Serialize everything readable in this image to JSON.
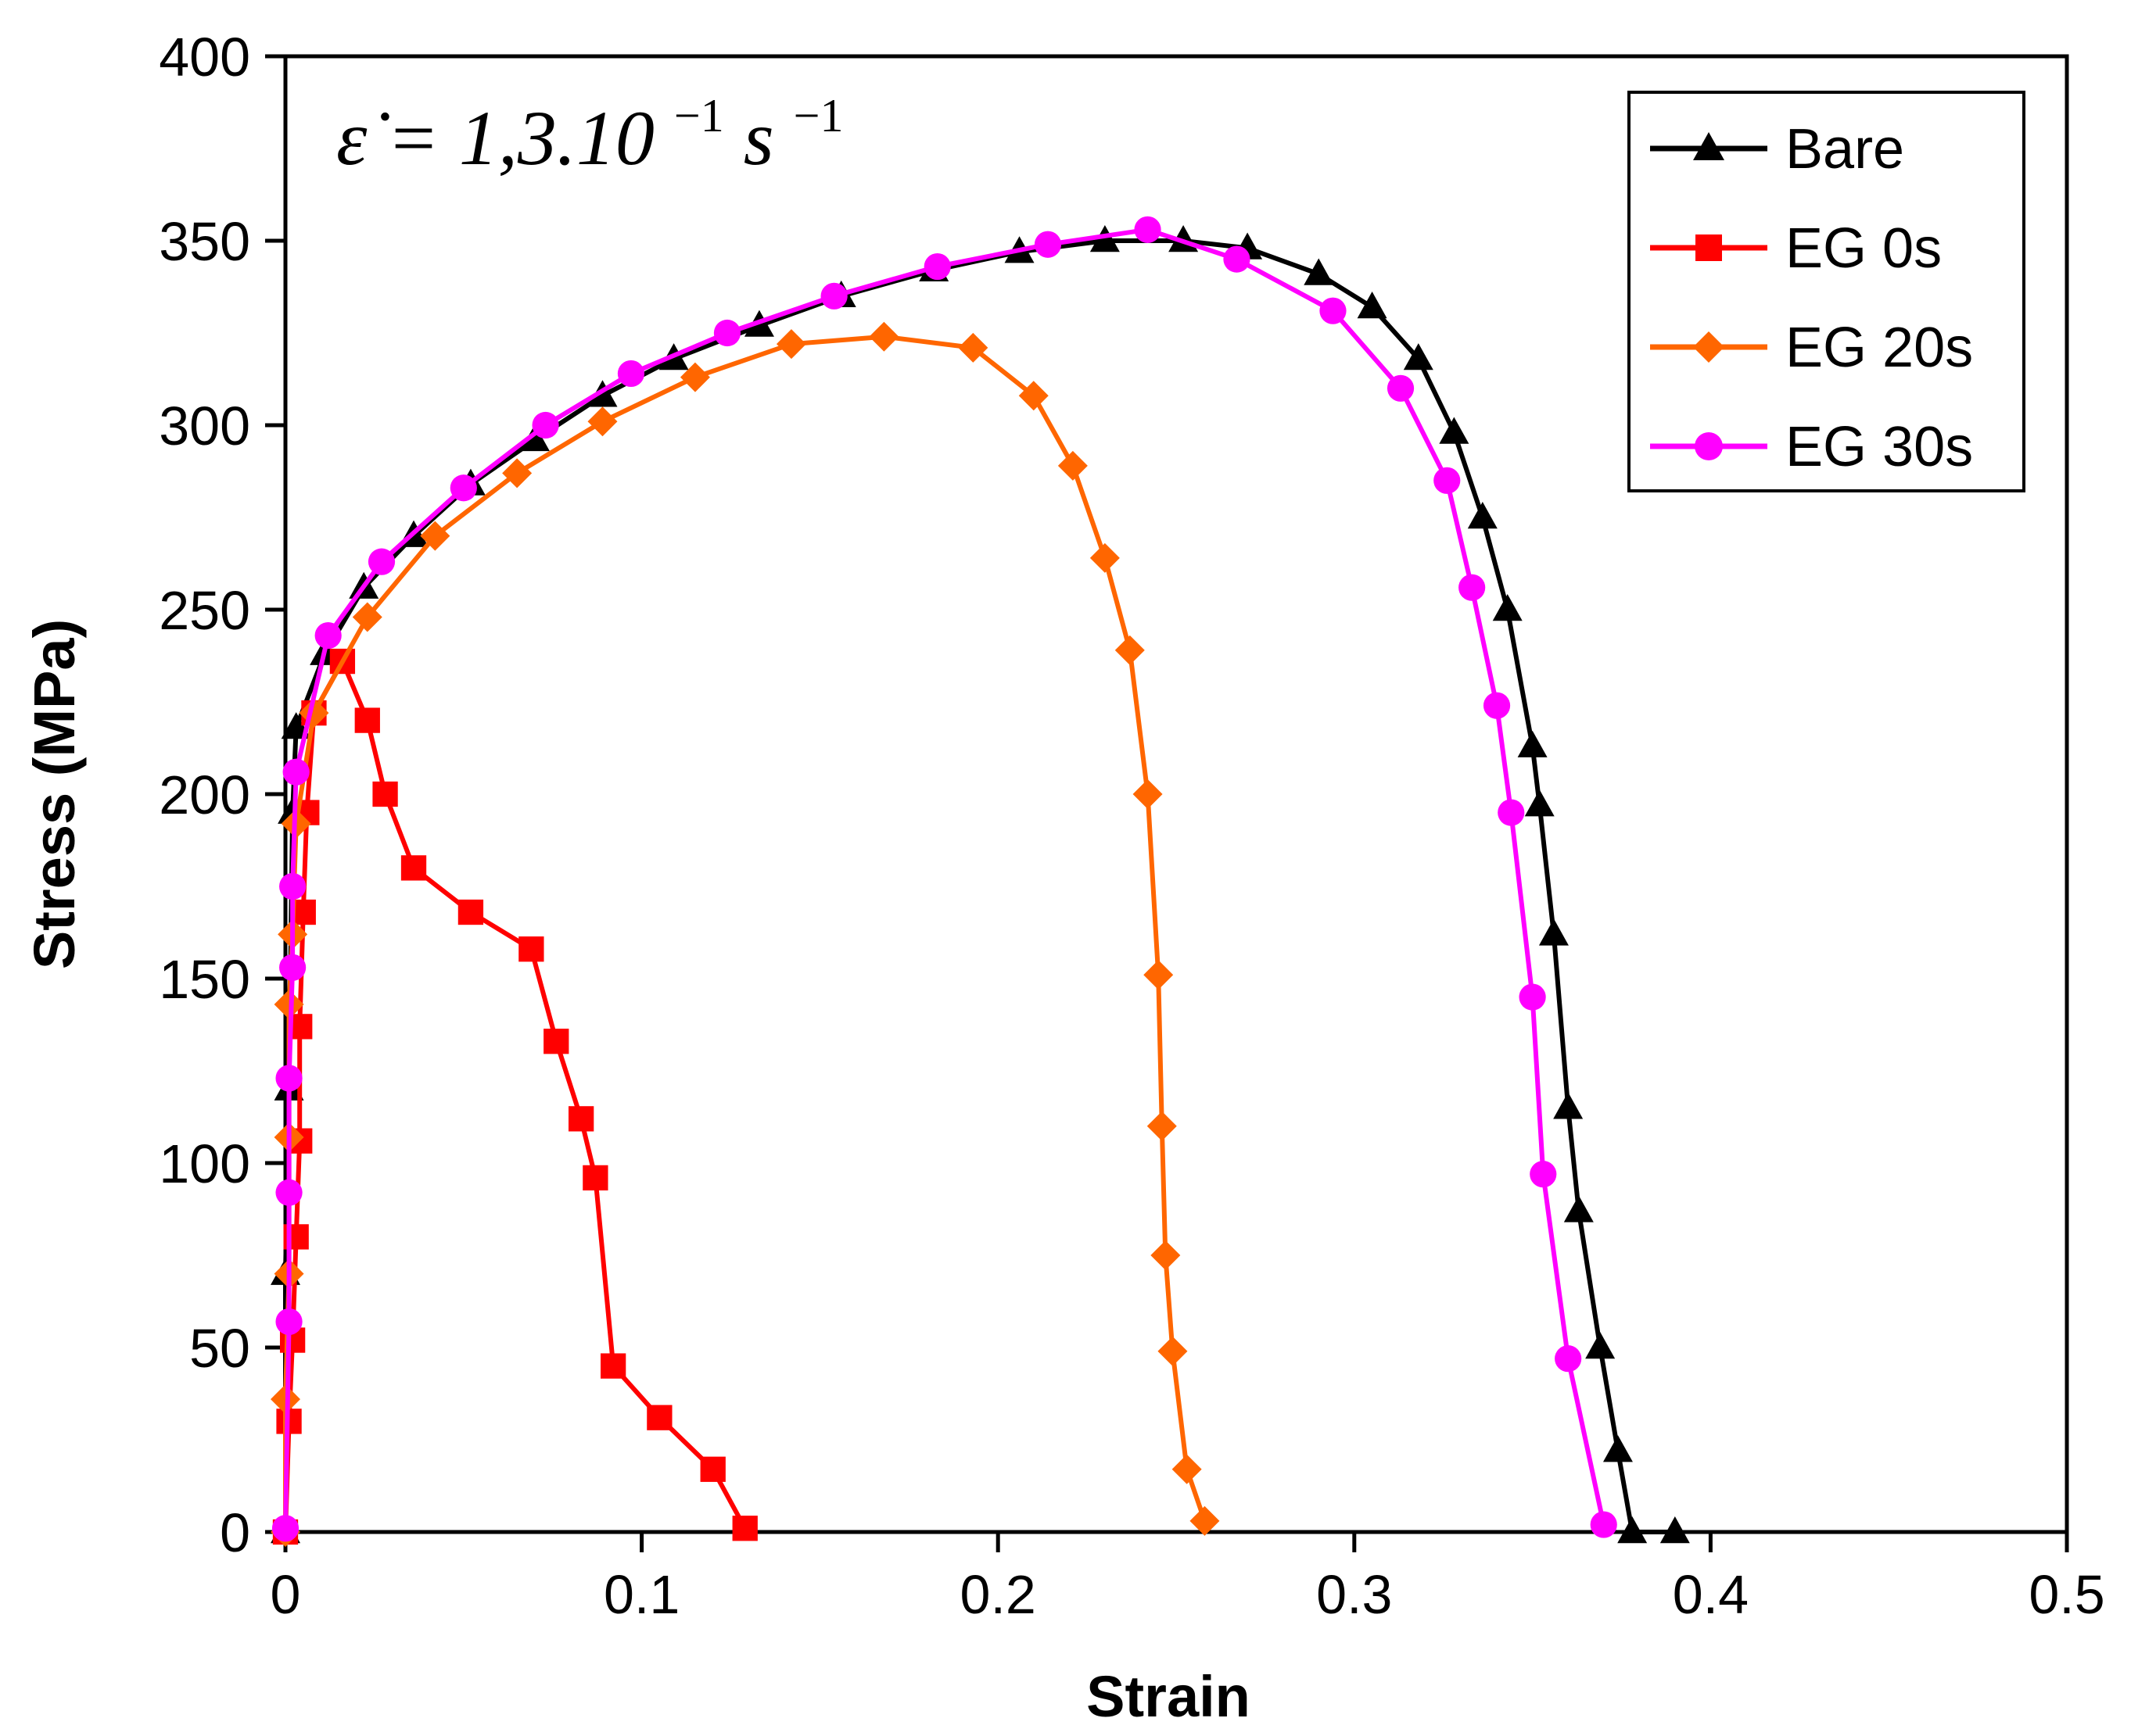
{
  "chart_data": {
    "type": "line",
    "title": "",
    "xlabel": "Strain",
    "ylabel": "Stress (MPa)",
    "xlim": [
      0,
      0.5
    ],
    "ylim": [
      0,
      400
    ],
    "xticks": [
      "0",
      "0.1",
      "0.2",
      "0.3",
      "0.4",
      "0.5"
    ],
    "yticks": [
      "0",
      "50",
      "100",
      "150",
      "200",
      "250",
      "300",
      "350",
      "400"
    ],
    "grid": false,
    "legend": "top-right",
    "annotation": {
      "base": "ε̇ = 1,3.10",
      "exp1": "−1",
      "unit": " s",
      "exp2": "−1"
    },
    "series": [
      {
        "name": "Bare",
        "color": "#000000",
        "marker": "triangle",
        "points": [
          [
            0.0,
            0
          ],
          [
            0.0,
            70
          ],
          [
            0.001,
            120
          ],
          [
            0.002,
            195
          ],
          [
            0.003,
            218
          ],
          [
            0.011,
            238
          ],
          [
            0.022,
            256
          ],
          [
            0.036,
            270
          ],
          [
            0.052,
            284
          ],
          [
            0.07,
            296
          ],
          [
            0.089,
            308
          ],
          [
            0.109,
            318
          ],
          [
            0.133,
            327
          ],
          [
            0.156,
            335
          ],
          [
            0.182,
            342
          ],
          [
            0.206,
            347
          ],
          [
            0.23,
            350
          ],
          [
            0.252,
            350
          ],
          [
            0.27,
            348
          ],
          [
            0.29,
            341
          ],
          [
            0.305,
            332
          ],
          [
            0.318,
            318
          ],
          [
            0.328,
            298
          ],
          [
            0.336,
            275
          ],
          [
            0.343,
            250
          ],
          [
            0.35,
            213
          ],
          [
            0.352,
            197
          ],
          [
            0.356,
            162
          ],
          [
            0.36,
            115
          ],
          [
            0.363,
            87
          ],
          [
            0.369,
            50
          ],
          [
            0.374,
            22
          ],
          [
            0.378,
            0
          ],
          [
            0.39,
            0
          ]
        ]
      },
      {
        "name": "EG 0s",
        "color": "#ff0000",
        "marker": "square",
        "points": [
          [
            0.0,
            0
          ],
          [
            0.001,
            30
          ],
          [
            0.002,
            52
          ],
          [
            0.003,
            80
          ],
          [
            0.004,
            106
          ],
          [
            0.004,
            137
          ],
          [
            0.005,
            168
          ],
          [
            0.006,
            195
          ],
          [
            0.008,
            222
          ],
          [
            0.016,
            236
          ],
          [
            0.023,
            220
          ],
          [
            0.028,
            200
          ],
          [
            0.036,
            180
          ],
          [
            0.052,
            168
          ],
          [
            0.069,
            158
          ],
          [
            0.076,
            133
          ],
          [
            0.083,
            112
          ],
          [
            0.087,
            96
          ],
          [
            0.092,
            45
          ],
          [
            0.105,
            31
          ],
          [
            0.12,
            17
          ],
          [
            0.129,
            1
          ]
        ]
      },
      {
        "name": "EG 20s",
        "color": "#ff6600",
        "marker": "diamond",
        "points": [
          [
            0.0,
            0
          ],
          [
            0.0,
            36
          ],
          [
            0.001,
            70
          ],
          [
            0.001,
            107
          ],
          [
            0.001,
            143
          ],
          [
            0.002,
            162
          ],
          [
            0.003,
            192
          ],
          [
            0.008,
            222
          ],
          [
            0.023,
            248
          ],
          [
            0.042,
            270
          ],
          [
            0.065,
            287
          ],
          [
            0.089,
            301
          ],
          [
            0.115,
            313
          ],
          [
            0.142,
            322
          ],
          [
            0.168,
            324
          ],
          [
            0.193,
            321
          ],
          [
            0.21,
            308
          ],
          [
            0.221,
            289
          ],
          [
            0.23,
            264
          ],
          [
            0.237,
            239
          ],
          [
            0.242,
            200
          ],
          [
            0.245,
            151
          ],
          [
            0.246,
            110
          ],
          [
            0.247,
            75
          ],
          [
            0.249,
            49
          ],
          [
            0.253,
            17
          ],
          [
            0.258,
            3
          ]
        ]
      },
      {
        "name": "EG 30s",
        "color": "#ff00ff",
        "marker": "circle",
        "points": [
          [
            0.0,
            1
          ],
          [
            0.001,
            57
          ],
          [
            0.001,
            92
          ],
          [
            0.001,
            123
          ],
          [
            0.002,
            153
          ],
          [
            0.002,
            175
          ],
          [
            0.003,
            206
          ],
          [
            0.012,
            243
          ],
          [
            0.027,
            263
          ],
          [
            0.05,
            283
          ],
          [
            0.073,
            300
          ],
          [
            0.097,
            314
          ],
          [
            0.124,
            325
          ],
          [
            0.154,
            335
          ],
          [
            0.183,
            343
          ],
          [
            0.214,
            349
          ],
          [
            0.242,
            353
          ],
          [
            0.267,
            345
          ],
          [
            0.294,
            331
          ],
          [
            0.313,
            310
          ],
          [
            0.326,
            285
          ],
          [
            0.333,
            256
          ],
          [
            0.34,
            224
          ],
          [
            0.344,
            195
          ],
          [
            0.35,
            145
          ],
          [
            0.353,
            97
          ],
          [
            0.36,
            47
          ],
          [
            0.37,
            2
          ]
        ]
      }
    ]
  }
}
